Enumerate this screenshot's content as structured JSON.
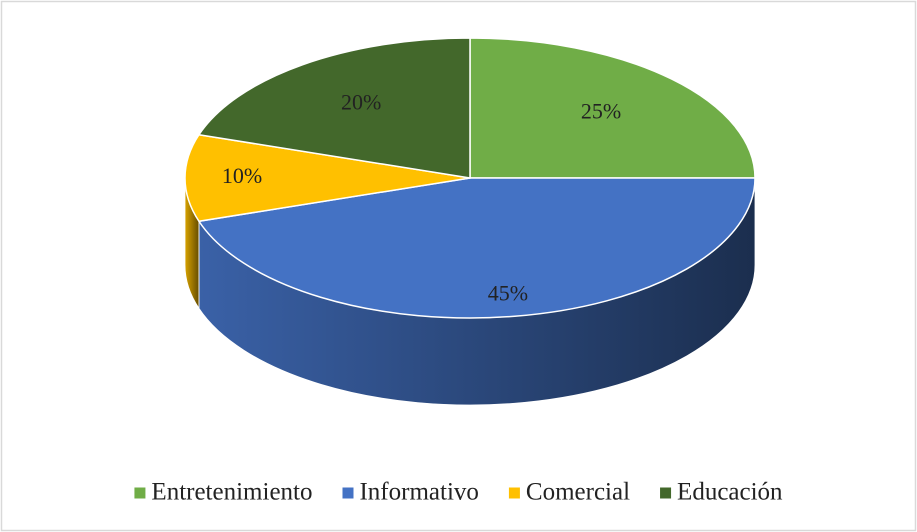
{
  "chart_data": {
    "type": "pie3d",
    "categories": [
      "Entretenimiento",
      "Informativo",
      "Comercial",
      "Educación"
    ],
    "values": [
      25,
      45,
      10,
      20
    ],
    "value_labels": [
      "25%",
      "45%",
      "10%",
      "20%"
    ],
    "colors": [
      "#70ad47",
      "#4472c4",
      "#ffc000",
      "#43682b"
    ],
    "legend": "bottom"
  }
}
